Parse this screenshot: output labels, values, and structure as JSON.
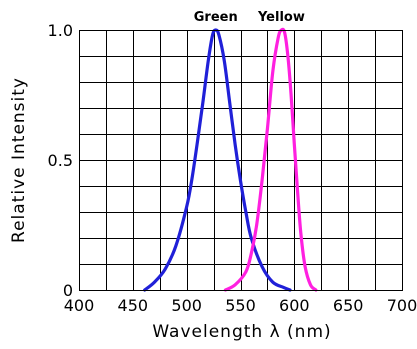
{
  "chart_data": {
    "type": "line",
    "title": "",
    "xlabel": "Wavelength λ  (nm)",
    "ylabel": "Relative Intensity",
    "xlim": [
      400,
      700
    ],
    "ylim": [
      0,
      1.0
    ],
    "x_ticks": [
      400,
      450,
      500,
      550,
      600,
      650,
      700
    ],
    "x_tick_labels": [
      "400",
      "450",
      "500",
      "550",
      "600",
      "650",
      "700"
    ],
    "y_ticks": [
      0,
      0.5,
      1.0
    ],
    "y_tick_labels": [
      "0",
      "0.5",
      "1.0"
    ],
    "x_grid_step": 25,
    "y_grid_step": 0.1,
    "grid": true,
    "series": [
      {
        "name": "Green",
        "color": "#2020d8",
        "x": [
          461,
          470,
          480,
          490,
          500,
          505,
          510,
          515,
          520,
          524,
          527,
          530,
          535,
          540,
          545,
          550,
          555,
          560,
          570,
          580,
          590,
          596
        ],
        "y": [
          0.0,
          0.03,
          0.08,
          0.17,
          0.32,
          0.43,
          0.57,
          0.72,
          0.88,
          0.98,
          1.0,
          0.98,
          0.88,
          0.72,
          0.56,
          0.42,
          0.3,
          0.2,
          0.09,
          0.03,
          0.01,
          0.0
        ]
      },
      {
        "name": "Yellow",
        "color": "#ff20e0",
        "x": [
          536,
          545,
          555,
          560,
          565,
          570,
          575,
          580,
          585,
          588,
          591,
          594,
          597,
          600,
          603,
          606,
          610,
          615,
          620
        ],
        "y": [
          0.0,
          0.02,
          0.07,
          0.14,
          0.25,
          0.42,
          0.62,
          0.84,
          0.97,
          1.0,
          0.99,
          0.9,
          0.75,
          0.56,
          0.38,
          0.22,
          0.09,
          0.02,
          0.0
        ]
      }
    ]
  }
}
